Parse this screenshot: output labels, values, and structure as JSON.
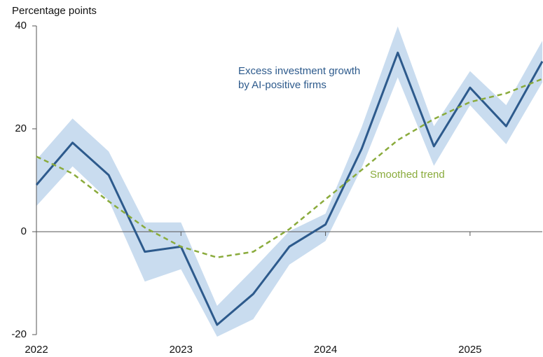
{
  "chart_data": {
    "type": "line",
    "y_label": "Percentage points",
    "x": [
      2022,
      2022.25,
      2022.5,
      2022.75,
      2023,
      2023.25,
      2023.5,
      2023.75,
      2024,
      2024.25,
      2024.5,
      2024.75,
      2025,
      2025.25,
      2025.5
    ],
    "xlim": [
      2022,
      2025.5
    ],
    "xticks": [
      2022,
      2023,
      2024,
      2025
    ],
    "ylim": [
      -20,
      40
    ],
    "yticks": [
      -20,
      0,
      20,
      40
    ],
    "band": {
      "color": "#c9dcef",
      "upper": [
        14,
        22,
        15.6,
        1.8,
        1.8,
        -14.4,
        -7.3,
        0.1,
        3.5,
        20.3,
        39.9,
        20.5,
        31.2,
        24.6,
        37.1
      ],
      "lower": [
        5,
        12.7,
        6.1,
        -9.7,
        -7.3,
        -20.4,
        -17,
        -6.4,
        -1.8,
        12.4,
        30,
        12.8,
        24.6,
        17,
        29
      ]
    },
    "series": [
      {
        "name": "Excess investment growth by AI-positive firms",
        "name_lines": [
          "Excess investment growth",
          "by AI-positive firms"
        ],
        "color": "#2d5a8c",
        "dash": false,
        "values": [
          9.1,
          17.3,
          11,
          -3.9,
          -2.9,
          -18.1,
          -12.1,
          -2.9,
          1.4,
          16.1,
          34.8,
          16.6,
          28,
          20.5,
          33.1
        ]
      },
      {
        "name": "Smoothed trend",
        "name_lines": [
          "Smoothed trend"
        ],
        "color": "#8aab3c",
        "dash": true,
        "values": [
          14.6,
          11.3,
          5.9,
          0.8,
          -2.9,
          -5,
          -3.9,
          0.5,
          6.3,
          12,
          17.8,
          21.9,
          25.2,
          26.9,
          29.7
        ]
      }
    ]
  }
}
